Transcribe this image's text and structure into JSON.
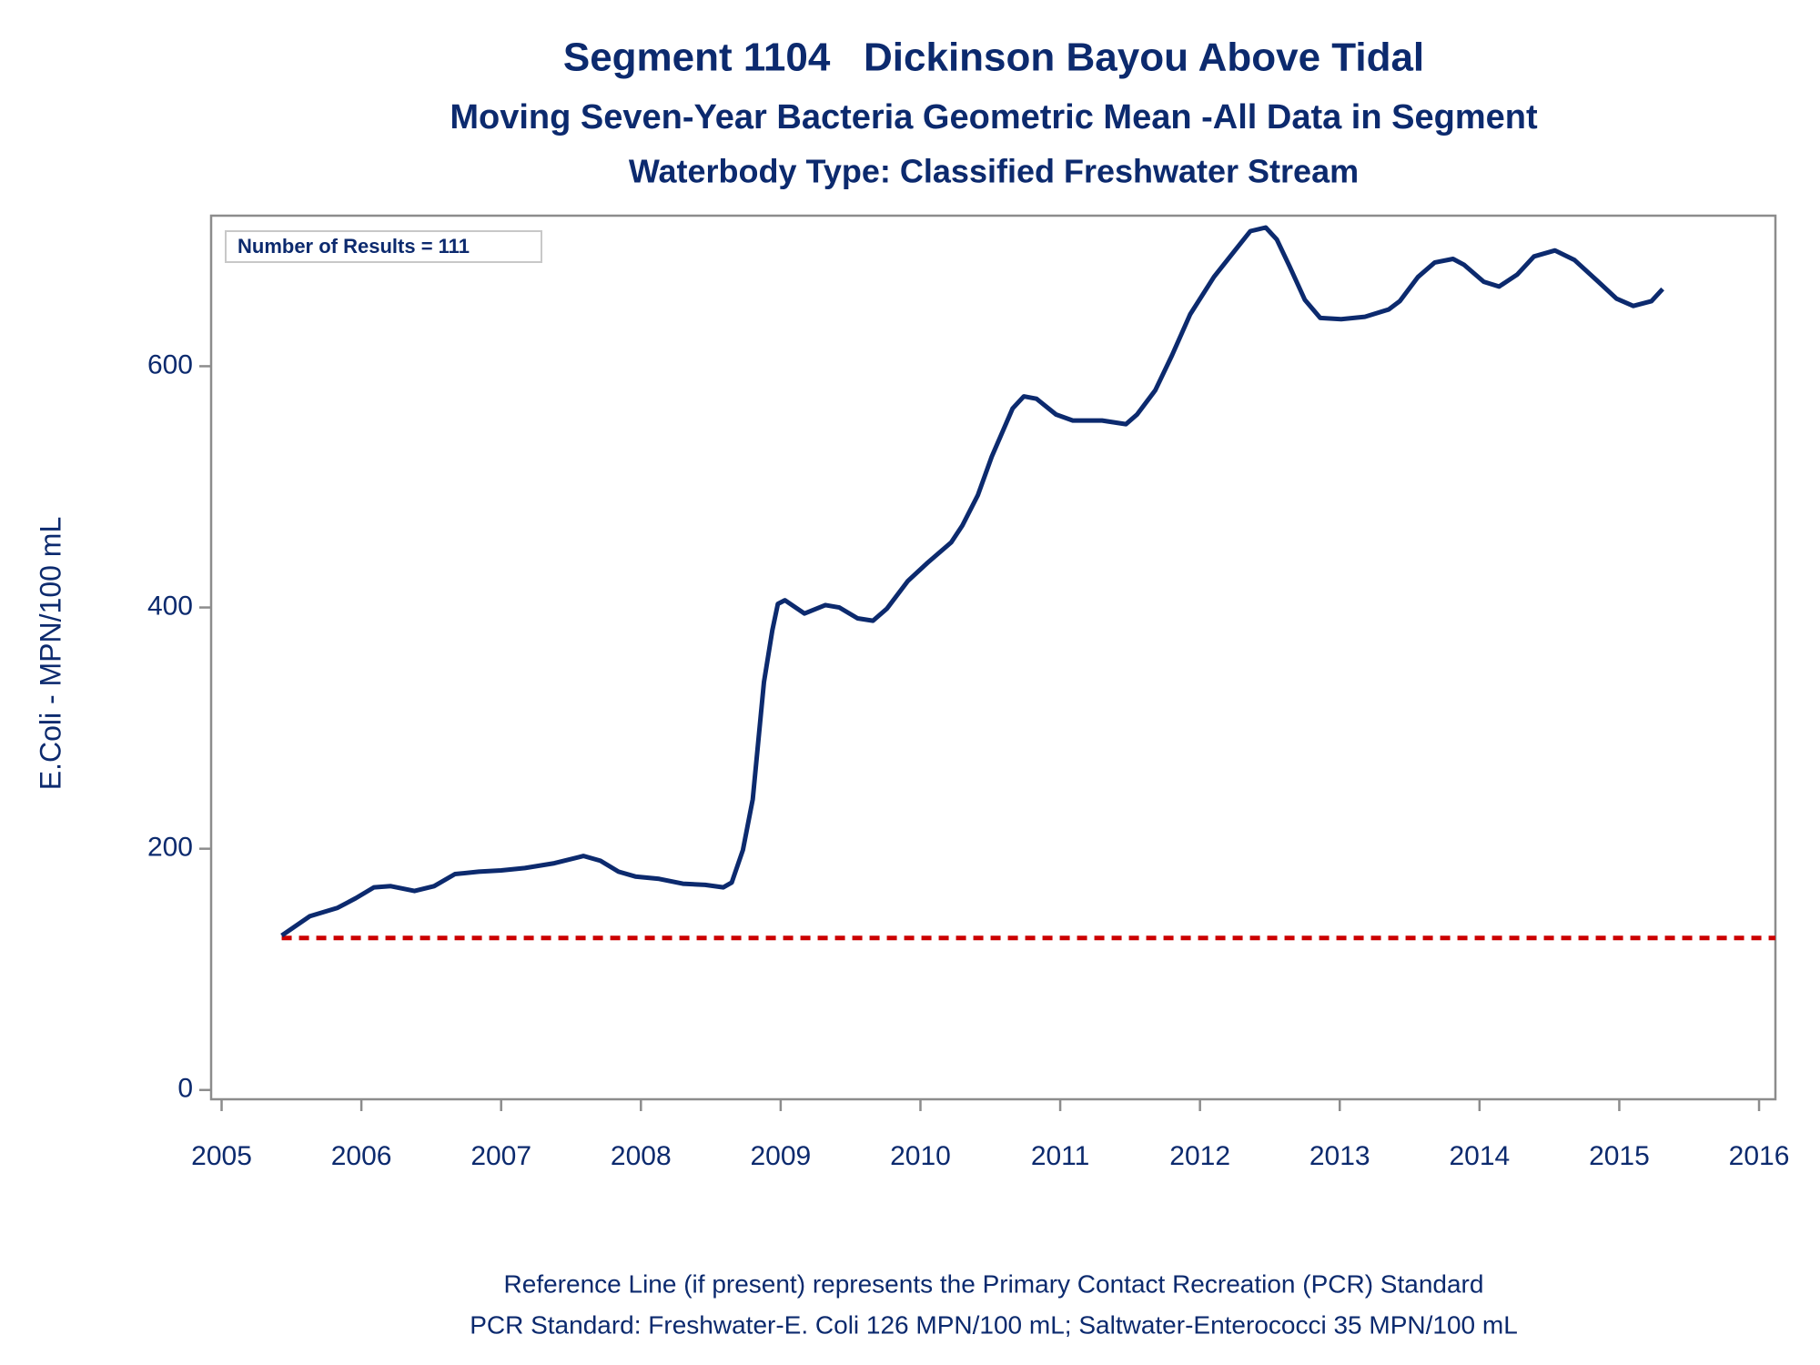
{
  "chart_data": {
    "type": "line",
    "title": "Segment 1104   Dickinson Bayou Above Tidal",
    "subtitle": "Moving Seven-Year Bacteria Geometric Mean -All Data in Segment",
    "subtitle2": "Waterbody Type: Classified Freshwater Stream",
    "ylabel": "E.Coli - MPN/100 mL",
    "annotation": "Number of Results = 111",
    "footnotes": [
      "Reference Line (if present) represents the Primary Contact Recreation (PCR) Standard",
      "PCR Standard: Freshwater-E. Coli 126 MPN/100 mL; Saltwater-Enterococci 35 MPN/100 mL"
    ],
    "reference_line": {
      "value": 126,
      "color": "#cc0000"
    },
    "xlim": [
      2004.925,
      2016.117
    ],
    "ylim": [
      -7.7,
      724.8
    ],
    "xticks": [
      2005,
      2006,
      2007,
      2008,
      2009,
      2010,
      2011,
      2012,
      2013,
      2014,
      2015,
      2016
    ],
    "yticks": [
      0,
      200,
      400,
      600
    ],
    "grid": false,
    "series": [
      {
        "color": "#0c2a6e",
        "x": [
          2005.43,
          2005.63,
          2005.83,
          2005.96,
          2006.09,
          2006.21,
          2006.38,
          2006.52,
          2006.67,
          2006.84,
          2007.0,
          2007.17,
          2007.38,
          2007.59,
          2007.71,
          2007.84,
          2007.96,
          2008.13,
          2008.3,
          2008.46,
          2008.59,
          2008.65,
          2008.73,
          2008.8,
          2008.88,
          2008.94,
          2008.98,
          2009.03,
          2009.17,
          2009.32,
          2009.42,
          2009.55,
          2009.66,
          2009.76,
          2009.91,
          2010.05,
          2010.22,
          2010.3,
          2010.41,
          2010.51,
          2010.66,
          2010.74,
          2010.83,
          2010.97,
          2011.09,
          2011.3,
          2011.47,
          2011.55,
          2011.68,
          2011.8,
          2011.93,
          2012.1,
          2012.25,
          2012.36,
          2012.47,
          2012.55,
          2012.64,
          2012.75,
          2012.86,
          2013.01,
          2013.18,
          2013.35,
          2013.43,
          2013.56,
          2013.68,
          2013.81,
          2013.89,
          2014.03,
          2014.14,
          2014.27,
          2014.39,
          2014.54,
          2014.68,
          2014.85,
          2014.98,
          2015.1,
          2015.23,
          2015.31
        ],
        "values": [
          128,
          144,
          151,
          159,
          168,
          169,
          165,
          169,
          179,
          181,
          182,
          184,
          188,
          194,
          190,
          181,
          177,
          175,
          171,
          170,
          168,
          172,
          199,
          241,
          338,
          381,
          403,
          406,
          395,
          402,
          400,
          391,
          389,
          399,
          422,
          437,
          454,
          468,
          493,
          525,
          565,
          575,
          573,
          560,
          555,
          555,
          552,
          560,
          580,
          609,
          643,
          674,
          696,
          712,
          715,
          705,
          683,
          655,
          640,
          639,
          641,
          647,
          654,
          674,
          686,
          689,
          684,
          670,
          666,
          676,
          691,
          696,
          688,
          670,
          656,
          650,
          654,
          664
        ]
      }
    ]
  }
}
